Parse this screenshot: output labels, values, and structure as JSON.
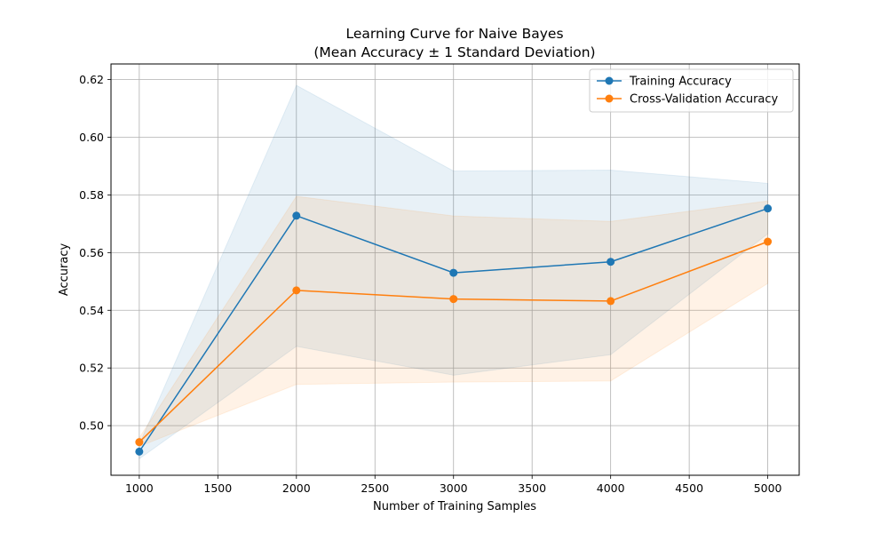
{
  "chart_data": {
    "type": "line",
    "title": "Learning Curve for Naive Bayes",
    "subtitle": "(Mean Accuracy ± 1 Standard Deviation)",
    "xlabel": "Number of Training Samples",
    "ylabel": "Accuracy",
    "x": [
      1000,
      2000,
      3000,
      4000,
      5000
    ],
    "xlim": [
      820,
      5200
    ],
    "ylim": [
      0.4828,
      0.6254
    ],
    "xticks": [
      1000,
      1500,
      2000,
      2500,
      3000,
      3500,
      4000,
      4500,
      5000
    ],
    "yticks": [
      0.5,
      0.52,
      0.54,
      0.56,
      0.58,
      0.6,
      0.62
    ],
    "grid": true,
    "legend_position": "top-right",
    "series": [
      {
        "name": "Training Accuracy",
        "color": "#1f77b4",
        "x": [
          1000,
          2000,
          3000,
          4000,
          5000
        ],
        "values": [
          0.491,
          0.5728,
          0.553,
          0.5568,
          0.5753
        ],
        "upper": [
          0.4935,
          0.618,
          0.5883,
          0.5886,
          0.584
        ],
        "lower": [
          0.4885,
          0.5275,
          0.5175,
          0.5246,
          0.5665
        ]
      },
      {
        "name": "Cross-Validation Accuracy",
        "color": "#ff7f0e",
        "x": [
          1000,
          2000,
          3000,
          4000,
          5000
        ],
        "values": [
          0.4943,
          0.5469,
          0.5439,
          0.5432,
          0.5638
        ],
        "upper": [
          0.4958,
          0.5795,
          0.5727,
          0.5708,
          0.5779
        ],
        "lower": [
          0.4928,
          0.5143,
          0.5151,
          0.5155,
          0.5493
        ]
      }
    ]
  }
}
